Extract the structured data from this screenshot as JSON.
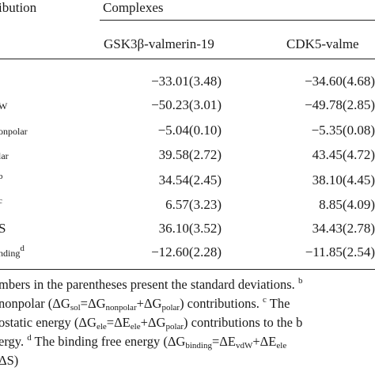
{
  "table": {
    "header_contribution": "ibution",
    "header_complexes": "Complexes",
    "col1": "GSK3β-valmerin-19",
    "col2": "CDK5-valme",
    "rows": [
      {
        "label_main": "",
        "label_sub": "",
        "label_sup": "",
        "v1": "−33.01(3.48)",
        "v2": "−34.60(4.68)"
      },
      {
        "label_main": "",
        "label_sub": "W",
        "label_sup": "",
        "v1": "−50.23(3.01)",
        "v2": "−49.78(2.85)"
      },
      {
        "label_main": "",
        "label_sub": "onpolar",
        "label_sup": "",
        "v1": "−5.04(0.10)",
        "v2": "−5.35(0.08)"
      },
      {
        "label_main": "",
        "label_sub": "lar",
        "label_sup": "",
        "v1": "39.58(2.72)",
        "v2": "43.45(4.72)"
      },
      {
        "label_main": "",
        "label_sub": "",
        "label_sup": "b",
        "v1": "34.54(2.45)",
        "v2": "38.10(4.45)"
      },
      {
        "label_main": "",
        "label_sub": "",
        "label_sup": "c",
        "v1": "6.57(3.23)",
        "v2": "8.85(4.09)"
      },
      {
        "label_main": "S",
        "label_sub": "",
        "label_sup": "",
        "v1": "36.10(3.52)",
        "v2": "34.43(2.78)"
      },
      {
        "label_main": "",
        "label_sub": "nding",
        "label_sup": "d",
        "v1": "−12.60(2.28)",
        "v2": "−11.85(2.54)"
      }
    ]
  },
  "footnotes": {
    "line1_a": "mbers in the parentheses present the standard deviations.",
    "line1_b": "b",
    "line2_a": "nonpolar (ΔG",
    "line2_s1": "sol",
    "line2_b": "=ΔG",
    "line2_s2": "nonpolar",
    "line2_c": "+ΔG",
    "line2_s3": "polar",
    "line2_d": ") contributions.",
    "line2_e": "c",
    "line2_f": "The",
    "line3_a": "ostatic energy (ΔG",
    "line3_s1": "ele",
    "line3_b": "=ΔE",
    "line3_s2": "ele",
    "line3_c": "+ΔG",
    "line3_s3": "polar",
    "line3_d": ") contributions to the b",
    "line4_a": "ergy.",
    "line4_b": "d",
    "line4_c": "The binding free energy (ΔG",
    "line4_s1": "binding",
    "line4_d": "=ΔE",
    "line4_s2": "vdW",
    "line4_e": "+ΔE",
    "line4_s3": "ele",
    "line5_a": "ΔS)"
  }
}
